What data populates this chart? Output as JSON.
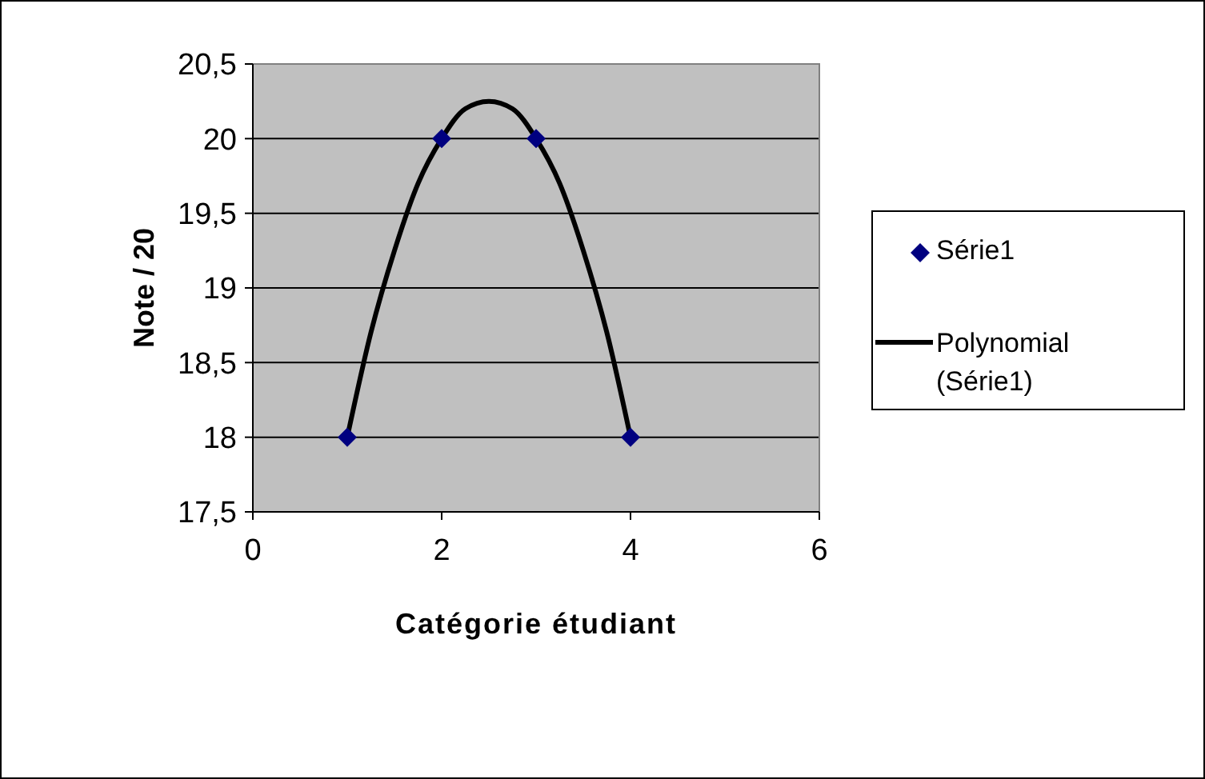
{
  "chart_data": {
    "type": "scatter",
    "xlabel": "Catégorie étudiant",
    "ylabel": "Note / 20",
    "xlim": [
      0,
      6
    ],
    "xticks": [
      0,
      2,
      4,
      6
    ],
    "ylim": [
      17.5,
      20.5
    ],
    "yticks": [
      {
        "value": 17.5,
        "label": "17,5"
      },
      18,
      {
        "value": 18.5,
        "label": "18,5"
      },
      19,
      {
        "value": 19.5,
        "label": "19,5"
      },
      20,
      {
        "value": 20.5,
        "label": "20,5"
      }
    ],
    "grid": "y",
    "legend": "right",
    "series": [
      {
        "name": "Série1",
        "marker": "diamond",
        "color": "#000080",
        "x": [
          1,
          2,
          3,
          4
        ],
        "values": [
          18,
          20,
          20,
          18
        ]
      },
      {
        "name": "Polynomial (Série1)",
        "type": "line",
        "color": "#000000",
        "line_style": "solid",
        "x": [
          1,
          1.25,
          1.5,
          1.75,
          2,
          2.25,
          2.5,
          2.75,
          3,
          3.25,
          3.5,
          3.75,
          4
        ],
        "values": [
          18,
          18.7,
          19.25,
          19.7,
          20,
          20.2,
          20.25,
          20.2,
          20,
          19.7,
          19.25,
          18.7,
          18
        ]
      }
    ]
  }
}
